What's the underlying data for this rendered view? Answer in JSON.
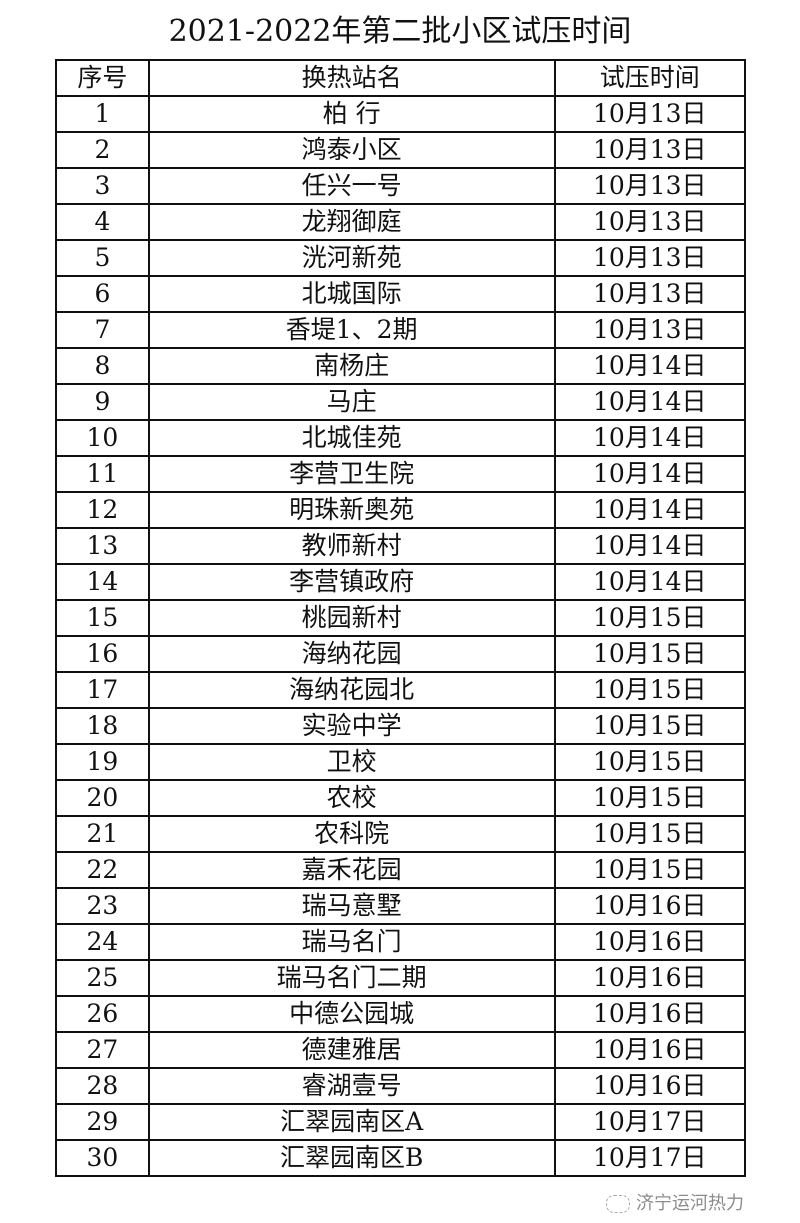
{
  "title": "2021-2022年第二批小区试压时间",
  "headers": [
    "序号",
    "换热站名",
    "试压时间"
  ],
  "rows": [
    [
      "1",
      "柏 行",
      "10月13日"
    ],
    [
      "2",
      "鸿泰小区",
      "10月13日"
    ],
    [
      "3",
      "任兴一号",
      "10月13日"
    ],
    [
      "4",
      "龙翔御庭",
      "10月13日"
    ],
    [
      "5",
      "洸河新苑",
      "10月13日"
    ],
    [
      "6",
      "北城国际",
      "10月13日"
    ],
    [
      "7",
      "香堤1、2期",
      "10月13日"
    ],
    [
      "8",
      "南杨庄",
      "10月14日"
    ],
    [
      "9",
      "马庄",
      "10月14日"
    ],
    [
      "10",
      "北城佳苑",
      "10月14日"
    ],
    [
      "11",
      "李营卫生院",
      "10月14日"
    ],
    [
      "12",
      "明珠新奥苑",
      "10月14日"
    ],
    [
      "13",
      "教师新村",
      "10月14日"
    ],
    [
      "14",
      "李营镇政府",
      "10月14日"
    ],
    [
      "15",
      "桃园新村",
      "10月15日"
    ],
    [
      "16",
      "海纳花园",
      "10月15日"
    ],
    [
      "17",
      "海纳花园北",
      "10月15日"
    ],
    [
      "18",
      "实验中学",
      "10月15日"
    ],
    [
      "19",
      "卫校",
      "10月15日"
    ],
    [
      "20",
      "农校",
      "10月15日"
    ],
    [
      "21",
      "农科院",
      "10月15日"
    ],
    [
      "22",
      "嘉禾花园",
      "10月15日"
    ],
    [
      "23",
      "瑞马意墅",
      "10月16日"
    ],
    [
      "24",
      "瑞马名门",
      "10月16日"
    ],
    [
      "25",
      "瑞马名门二期",
      "10月16日"
    ],
    [
      "26",
      "中德公园城",
      "10月16日"
    ],
    [
      "27",
      "德建雅居",
      "10月16日"
    ],
    [
      "28",
      "睿湖壹号",
      "10月16日"
    ],
    [
      "29",
      "汇翠园南区A",
      "10月17日"
    ],
    [
      "30",
      "汇翠园南区B",
      "10月17日"
    ]
  ],
  "watermark": "济宁运河热力"
}
